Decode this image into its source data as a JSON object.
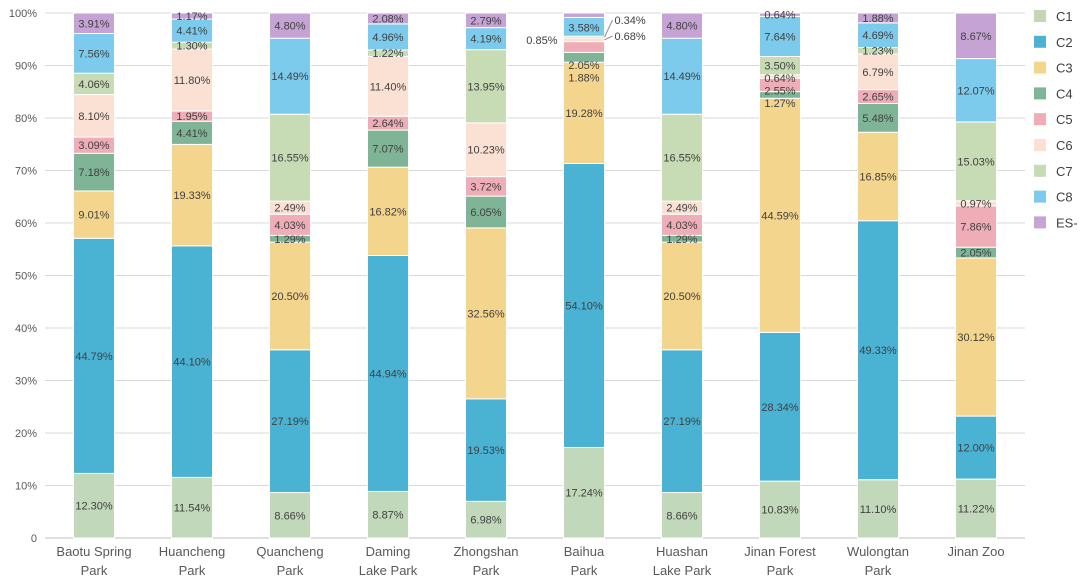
{
  "chart_data": {
    "type": "bar",
    "stacked": true,
    "title": "",
    "xlabel": "",
    "ylabel": "",
    "ylim": [
      0,
      100
    ],
    "y_ticks": [
      "0",
      "10%",
      "20%",
      "30%",
      "40%",
      "50%",
      "60%",
      "70%",
      "80%",
      "90%",
      "100%"
    ],
    "grid": true,
    "legend_position": "right",
    "categories": [
      [
        "Baotu Spring",
        "Park"
      ],
      [
        "Huancheng",
        "Park"
      ],
      [
        "Quancheng",
        "Park"
      ],
      [
        "Daming",
        "Lake Park"
      ],
      [
        "Zhongshan",
        "Park"
      ],
      [
        "Baihua",
        "Park"
      ],
      [
        "Huashan",
        "Lake Park"
      ],
      [
        "Jinan Forest",
        "Park"
      ],
      [
        "Wulongtan",
        "Park"
      ],
      [
        "Jinan Zoo"
      ]
    ],
    "series": [
      {
        "name": "C1",
        "color": "#c2d8ba",
        "values": [
          12.3,
          11.54,
          8.66,
          8.87,
          6.98,
          17.24,
          8.66,
          10.83,
          11.1,
          11.22
        ]
      },
      {
        "name": "C2",
        "color": "#4ab3d4",
        "values": [
          44.79,
          44.1,
          27.19,
          44.94,
          19.53,
          54.1,
          27.19,
          28.34,
          49.33,
          12.0
        ]
      },
      {
        "name": "C3",
        "color": "#f4d58d",
        "values": [
          9.01,
          19.33,
          20.5,
          16.82,
          32.56,
          19.28,
          20.5,
          44.59,
          16.85,
          30.12
        ]
      },
      {
        "name": "C4",
        "color": "#7fb596",
        "values": [
          7.18,
          4.41,
          1.29,
          7.07,
          6.05,
          1.88,
          1.29,
          1.27,
          5.48,
          2.05
        ]
      },
      {
        "name": "C5",
        "color": "#efadb7",
        "values": [
          3.09,
          1.95,
          4.03,
          2.64,
          3.72,
          2.05,
          4.03,
          2.55,
          2.65,
          7.86
        ]
      },
      {
        "name": "C6",
        "color": "#fbe0d4",
        "values": [
          8.1,
          11.8,
          2.49,
          11.4,
          10.23,
          0.68,
          2.49,
          0.64,
          6.79,
          0.97
        ]
      },
      {
        "name": "C7",
        "color": "#c7dbb5",
        "values": [
          4.06,
          1.3,
          16.55,
          1.22,
          13.95,
          0.34,
          16.55,
          3.5,
          1.23,
          15.03
        ]
      },
      {
        "name": "C8",
        "color": "#7ccbec",
        "values": [
          7.56,
          4.41,
          14.49,
          4.96,
          4.19,
          3.58,
          14.49,
          7.64,
          4.69,
          12.07
        ]
      },
      {
        "name": "ES-",
        "color": "#c5a3d4",
        "values": [
          3.91,
          1.17,
          4.8,
          2.08,
          2.79,
          0.85,
          4.8,
          0.64,
          1.88,
          8.67
        ]
      }
    ]
  }
}
